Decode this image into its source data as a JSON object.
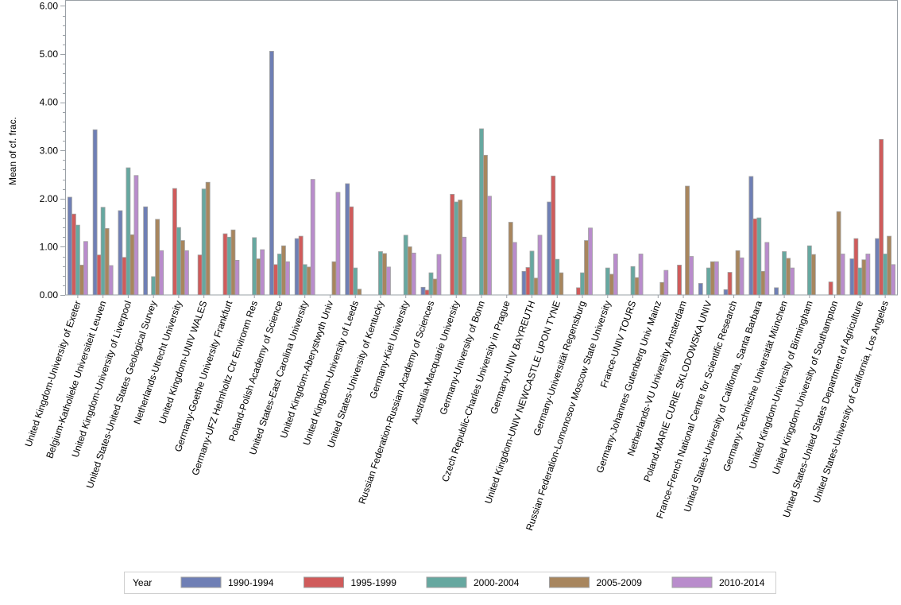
{
  "chart_data": {
    "type": "bar",
    "title": "",
    "xlabel": "",
    "ylabel": "Mean of cf. frac.",
    "ylim": [
      0,
      6
    ],
    "yticks": [
      "0.00",
      "1.00",
      "2.00",
      "3.00",
      "4.00",
      "5.00",
      "6.00"
    ],
    "grid": false,
    "legend": {
      "title": "Year",
      "placement": "bottom"
    },
    "categories": [
      "United Kingdom-University of Exeter",
      "Belgium-Katholieke Universiteit Leuven",
      "United Kingdom-University of Liverpool",
      "United States-United States Geological Survey",
      "Netherlands-Utrecht University",
      "United Kingdom-UNIV WALES",
      "Germany-Goethe University Frankfurt",
      "Germany-UFZ Helmholtz Ctr Environm Res",
      "Poland-Polish Academy of Science",
      "United States-East Carolina University",
      "United Kingdom-Aberystwyth Univ",
      "United Kingdom-University of Leeds",
      "United States-University of Kentucky",
      "Germany-Kiel University",
      "Russian Federation-Russian Academy of Sciences",
      "Australia-Macquarie University",
      "Germany-University of Bonn",
      "Czech Republic-Charles University in Prague",
      "Germany-UNIV BAYREUTH",
      "United Kingdom-UNIV NEWCASTLE UPON TYNE",
      "Germany-Universität Regensburg",
      "Russian Federation-Lomonosov Moscow State University",
      "France-UNIV TOURS",
      "Germany-Johannes Gutenberg Univ Mainz",
      "Netherlands-VU University Amsterdam",
      "Poland-MARIE CURIE SKLODOWSKA UNIV",
      "France-French National Centre for Scientific Research",
      "United States-University of California, Santa Barbara",
      "Germany-Technische Universität München",
      "United Kingdom-University of Birmingham",
      "United Kingdom-University of Southampton",
      "United States-United States Department of Agriculture",
      "United States-University of California, Los Angeles"
    ],
    "series": [
      {
        "name": "1990-1994",
        "color": "#6f7fb5",
        "values": [
          2.03,
          3.43,
          1.75,
          1.83,
          0,
          0,
          0,
          0,
          5.06,
          1.17,
          0,
          2.31,
          0,
          0,
          0.16,
          0,
          0,
          0,
          0.49,
          1.93,
          0,
          0,
          0,
          0,
          0,
          0.24,
          0.11,
          2.46,
          0.15,
          0,
          0,
          0.75,
          1.17
        ]
      },
      {
        "name": "1995-1999",
        "color": "#d05b5b",
        "values": [
          1.68,
          0.83,
          0.78,
          0,
          2.21,
          0.83,
          1.27,
          0,
          0.63,
          1.22,
          0,
          1.83,
          0,
          0,
          0.1,
          2.09,
          0,
          0,
          0.57,
          2.47,
          0.15,
          0,
          0,
          0,
          0.62,
          0,
          0.47,
          1.58,
          0,
          0,
          0.27,
          1.17,
          3.23
        ]
      },
      {
        "name": "2000-2004",
        "color": "#66a8a0",
        "values": [
          1.45,
          1.82,
          2.64,
          0.38,
          1.4,
          2.2,
          1.2,
          1.19,
          0.85,
          0.63,
          0,
          0.56,
          0.9,
          1.24,
          0.46,
          1.93,
          3.45,
          0,
          0.91,
          0.74,
          0.46,
          0.56,
          0.59,
          0,
          0,
          0.56,
          0,
          1.6,
          0.9,
          1.02,
          0,
          0.56,
          0.85
        ]
      },
      {
        "name": "2005-2009",
        "color": "#a8865e",
        "values": [
          0.62,
          1.38,
          1.25,
          1.57,
          1.13,
          2.34,
          1.35,
          0.75,
          1.02,
          0.58,
          0.69,
          0.12,
          0.86,
          1.0,
          0.33,
          1.97,
          2.9,
          1.51,
          0.35,
          0.46,
          1.13,
          0.43,
          0.36,
          0.26,
          2.26,
          0.69,
          0.92,
          0.49,
          0.76,
          0.84,
          1.73,
          0.73,
          1.22
        ]
      },
      {
        "name": "2010-2014",
        "color": "#b98ccc",
        "values": [
          1.11,
          0.61,
          2.48,
          0.92,
          0.92,
          0,
          0.72,
          0.94,
          0.69,
          2.4,
          2.13,
          0,
          0.58,
          0.87,
          0.84,
          1.2,
          2.05,
          1.09,
          1.24,
          0,
          1.39,
          0.85,
          0.85,
          0.51,
          0.8,
          0.69,
          0.77,
          1.09,
          0.56,
          0,
          0.85,
          0.85,
          0.63
        ]
      }
    ]
  }
}
